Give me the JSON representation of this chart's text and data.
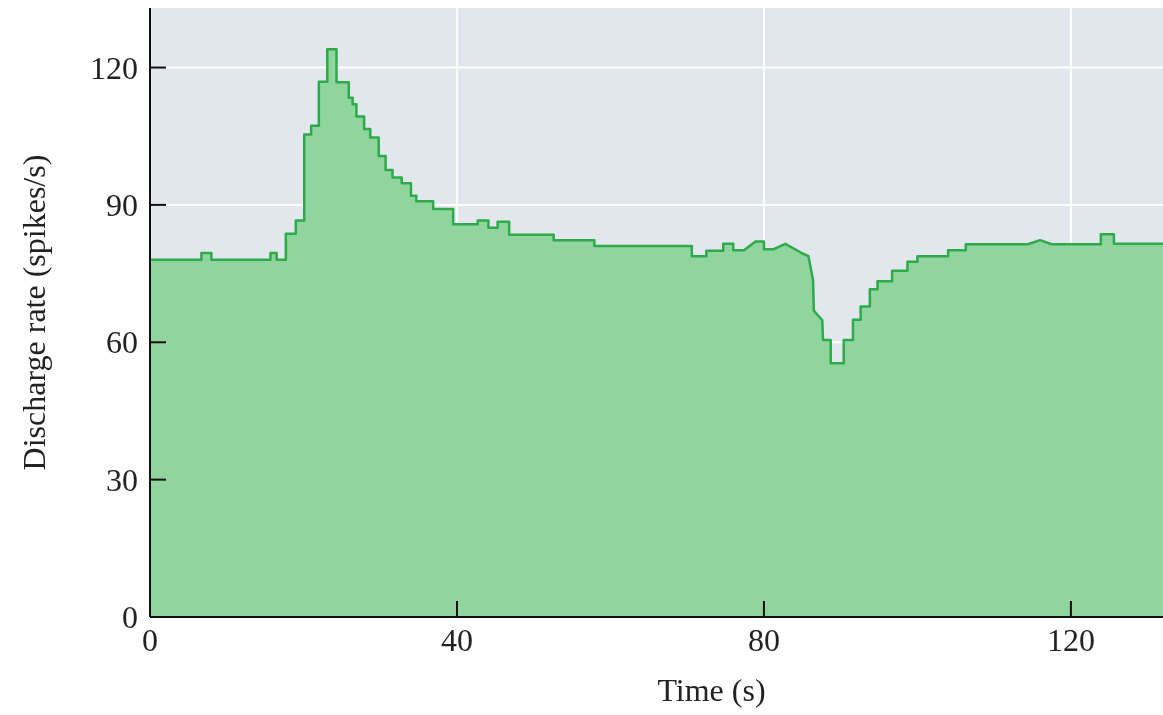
{
  "chart_data": {
    "type": "area",
    "xlabel": "Time (s)",
    "ylabel": "Discharge rate (spikes/s)",
    "xlim": [
      0,
      132
    ],
    "ylim": [
      0,
      133
    ],
    "xticks": [
      0,
      40,
      80,
      120
    ],
    "yticks": [
      0,
      30,
      60,
      90,
      120
    ],
    "grid": true,
    "series": [
      {
        "color": "#2daa4a",
        "x": [
          0,
          6.7,
          6.7,
          8.0,
          8.0,
          15.7,
          15.7,
          16.5,
          16.5,
          17.7,
          17.7,
          19.0,
          19.0,
          20.1,
          20.1,
          21.0,
          21.0,
          22.0,
          22.0,
          23.1,
          23.1,
          24.3,
          24.3,
          25.9,
          25.9,
          26.4,
          26.4,
          26.9,
          26.9,
          27.9,
          27.9,
          28.7,
          28.7,
          29.8,
          29.8,
          30.7,
          30.7,
          31.6,
          31.6,
          32.8,
          32.8,
          34.0,
          34.0,
          34.7,
          34.7,
          36.9,
          36.9,
          39.5,
          39.5,
          42.7,
          42.7,
          44.1,
          44.1,
          45.3,
          45.3,
          46.8,
          46.8,
          52.6,
          52.6,
          57.9,
          57.9,
          70.6,
          70.6,
          72.5,
          72.5,
          74.7,
          74.7,
          76.0,
          76.0,
          77.4,
          78.9,
          80.0,
          80.0,
          81.2,
          82.8,
          84.8,
          85.8,
          86.4,
          86.5,
          87.6,
          87.7,
          88.7,
          88.7,
          90.4,
          90.4,
          91.6,
          91.6,
          92.6,
          92.6,
          93.8,
          93.8,
          94.8,
          94.8,
          96.7,
          96.7,
          98.7,
          98.7,
          100.0,
          100.0,
          104.0,
          104.0,
          106.3,
          106.3,
          114.4,
          116.0,
          117.5,
          123.9,
          123.9,
          125.6,
          125.6,
          132
        ],
        "values": [
          78,
          78,
          79.5,
          79.5,
          78,
          78,
          79.5,
          79.5,
          78,
          78,
          83.7,
          83.7,
          86.6,
          86.6,
          105.4,
          105.4,
          107.3,
          107.3,
          116.9,
          116.9,
          124,
          124,
          116.8,
          116.8,
          113.4,
          113.4,
          112,
          112,
          109.3,
          109.3,
          106.6,
          106.6,
          104.7,
          104.7,
          100.7,
          100.7,
          97.6,
          97.6,
          96,
          96,
          94.7,
          94.7,
          92,
          92,
          90.8,
          90.8,
          89.1,
          89.1,
          85.8,
          85.8,
          86.6,
          86.6,
          85,
          85,
          86.3,
          86.3,
          83.5,
          83.5,
          82.3,
          82.3,
          81,
          81,
          78.8,
          78.8,
          80,
          80,
          81.5,
          81.5,
          80.1,
          80.1,
          82,
          82,
          80.3,
          80.3,
          81.5,
          79.6,
          78.8,
          73.6,
          66.9,
          64.8,
          60.5,
          60.5,
          55.4,
          55.4,
          60.5,
          60.5,
          64.9,
          64.9,
          67.8,
          67.8,
          71.6,
          71.6,
          73.3,
          73.3,
          75.6,
          75.6,
          77.6,
          77.6,
          78.8,
          78.8,
          80.1,
          80.1,
          81.4,
          81.4,
          82.3,
          81.4,
          81.4,
          83.6,
          83.6,
          81.5,
          81.5
        ]
      }
    ]
  }
}
